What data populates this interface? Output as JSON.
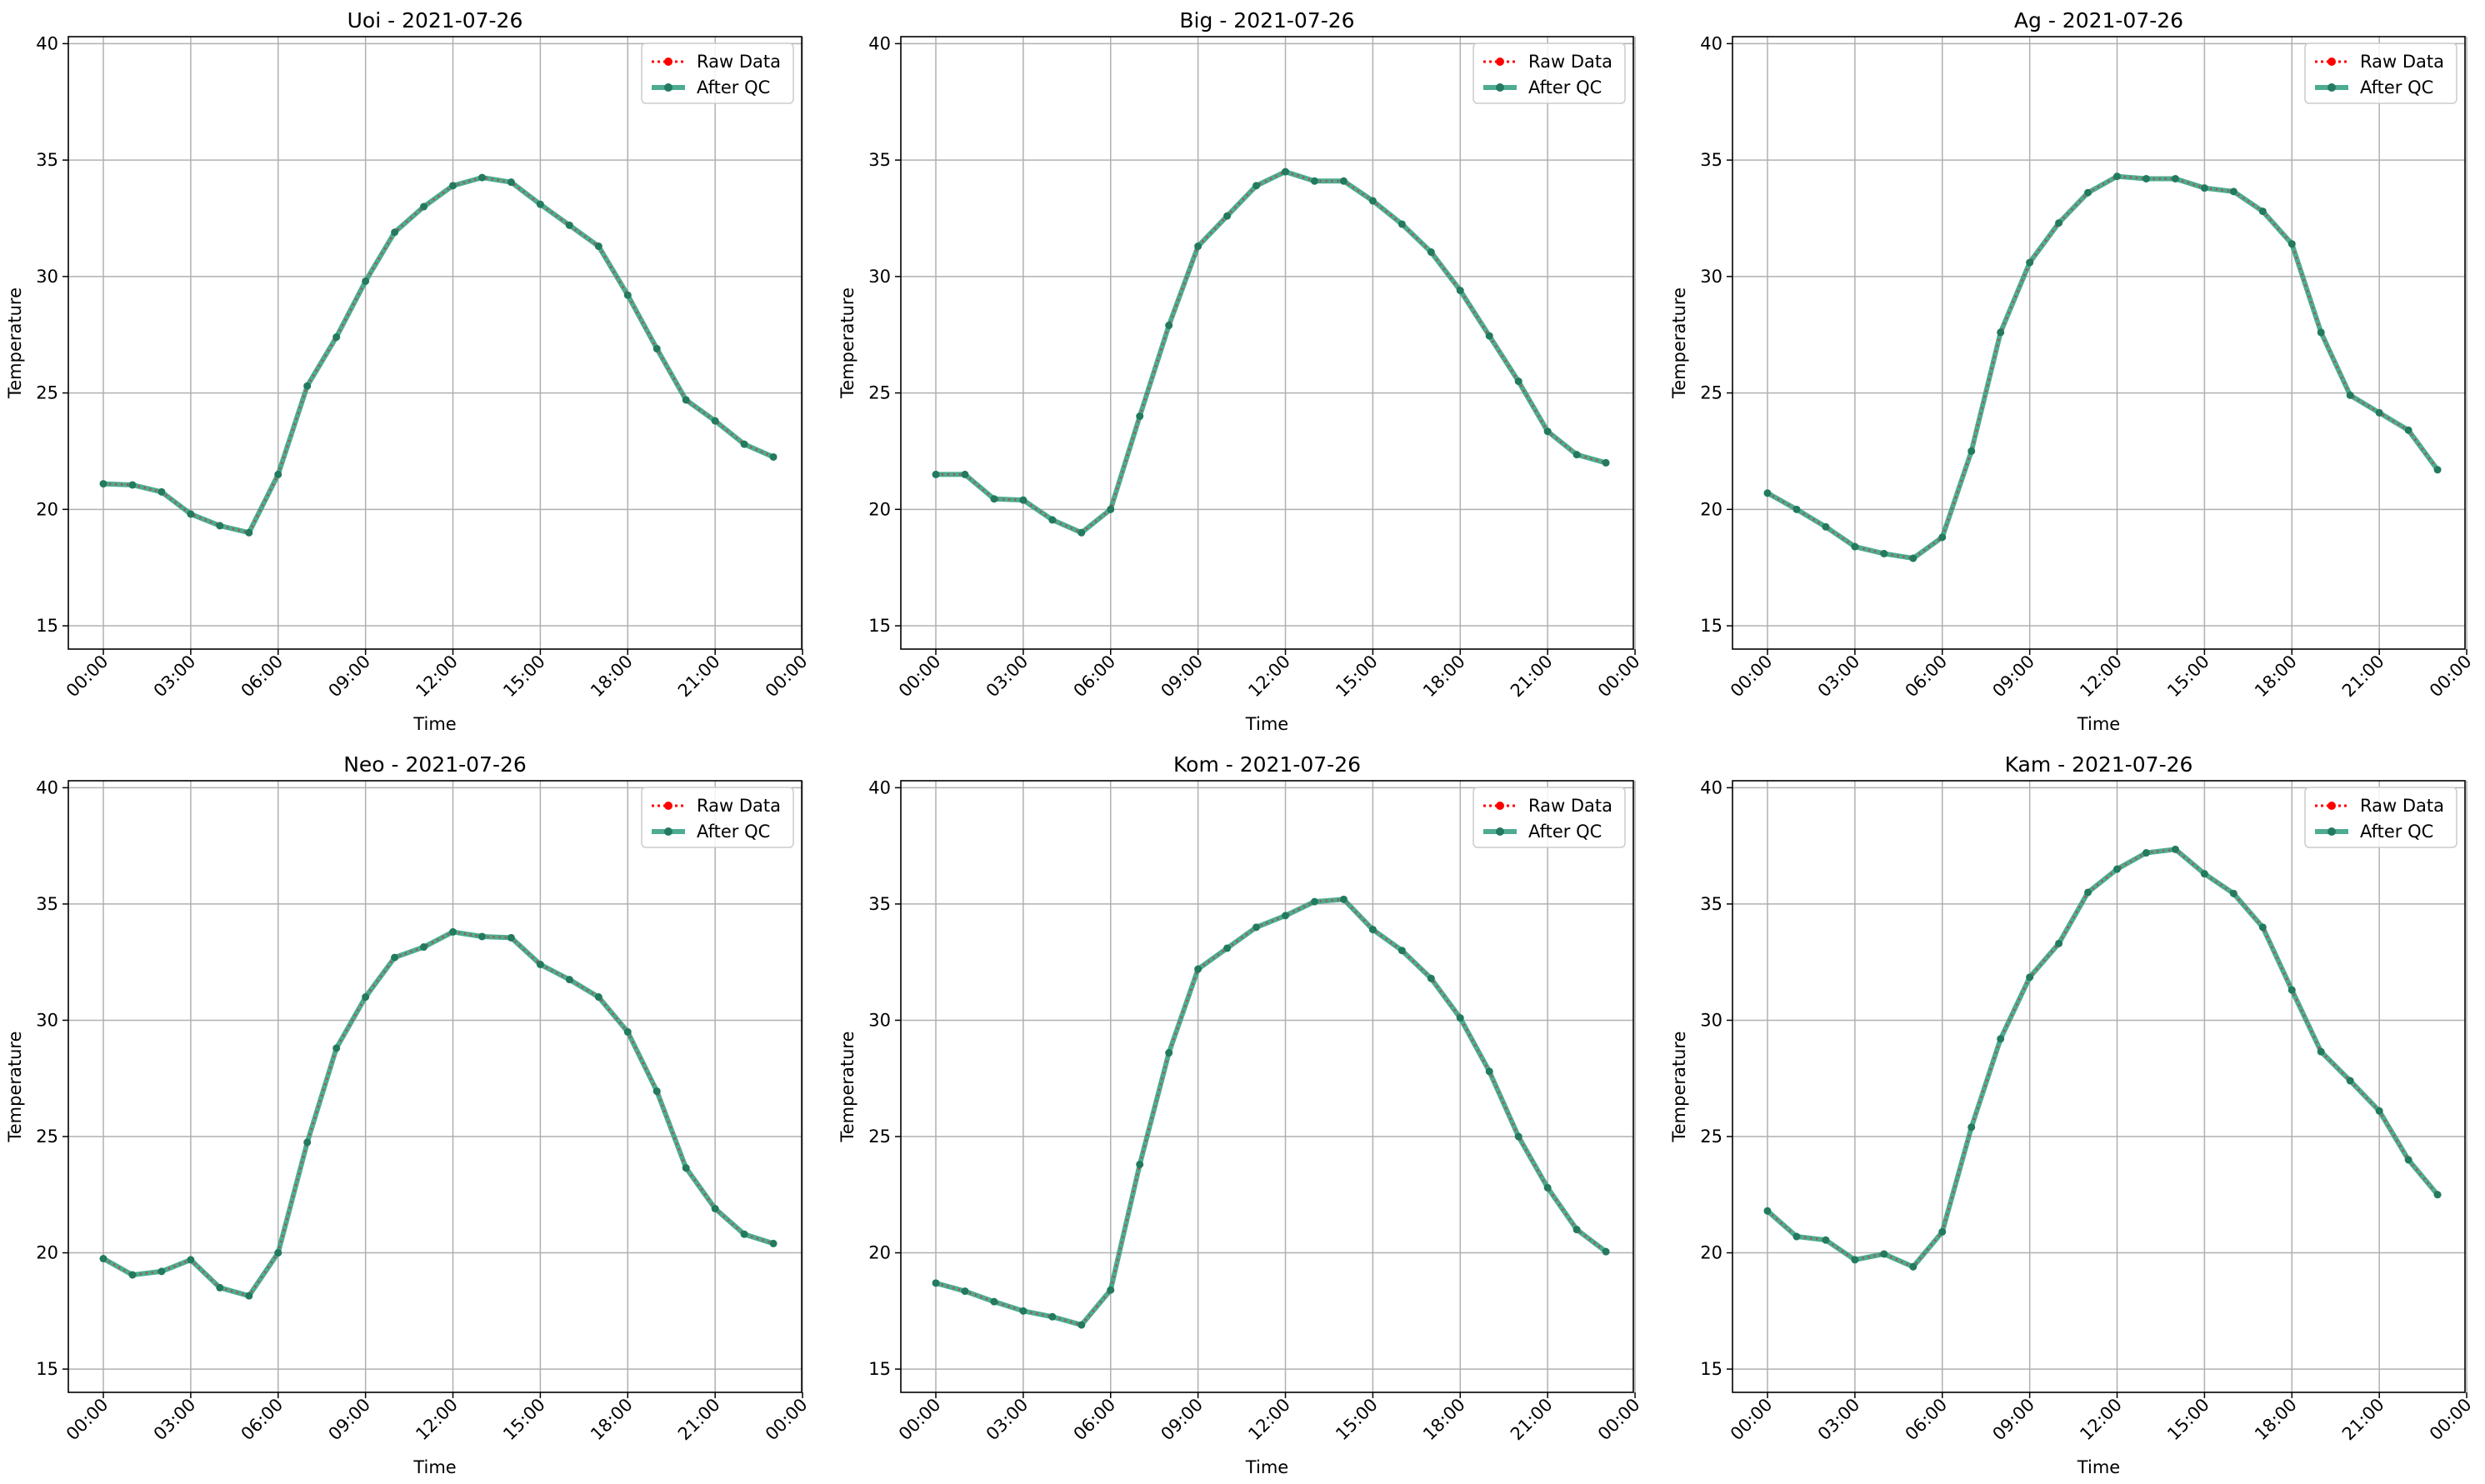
{
  "chart_data": [
    {
      "type": "line",
      "title": "Uoi - 2021-07-26",
      "xlabel": "Time",
      "ylabel": "Temperature",
      "xticks": [
        "00:00",
        "03:00",
        "06:00",
        "09:00",
        "12:00",
        "15:00",
        "18:00",
        "21:00",
        "00:00"
      ],
      "yticks": [
        "15",
        "20",
        "25",
        "30",
        "35",
        "40"
      ],
      "ylim": [
        14,
        40.3
      ],
      "grid": true,
      "legend_position": "top-right",
      "legend": [
        "Raw Data",
        "After QC"
      ],
      "x_hours": [
        0,
        1,
        2,
        3,
        4,
        5,
        6,
        7,
        8,
        9,
        10,
        11,
        12,
        13,
        14,
        15,
        16,
        17,
        18,
        19,
        20,
        21,
        22,
        23
      ],
      "series": [
        {
          "name": "Raw Data",
          "style": "dotted-markers",
          "values": [
            21.1,
            21.05,
            20.75,
            19.8,
            19.3,
            19.0,
            21.5,
            25.3,
            27.4,
            29.8,
            31.9,
            33.0,
            33.9,
            34.25,
            34.05,
            33.1,
            32.2,
            31.3,
            29.2,
            26.9,
            24.7,
            23.8,
            22.8,
            22.25
          ]
        },
        {
          "name": "After QC",
          "style": "solid-markers",
          "values": [
            21.1,
            21.05,
            20.75,
            19.8,
            19.3,
            19.0,
            21.5,
            25.3,
            27.4,
            29.8,
            31.9,
            33.0,
            33.9,
            34.25,
            34.05,
            33.1,
            32.2,
            31.3,
            29.2,
            26.9,
            24.7,
            23.8,
            22.8,
            22.25
          ]
        }
      ]
    },
    {
      "type": "line",
      "title": "Big - 2021-07-26",
      "xlabel": "Time",
      "ylabel": "Temperature",
      "xticks": [
        "00:00",
        "03:00",
        "06:00",
        "09:00",
        "12:00",
        "15:00",
        "18:00",
        "21:00",
        "00:00"
      ],
      "yticks": [
        "15",
        "20",
        "25",
        "30",
        "35",
        "40"
      ],
      "ylim": [
        14,
        40.3
      ],
      "grid": true,
      "legend_position": "top-right",
      "legend": [
        "Raw Data",
        "After QC"
      ],
      "x_hours": [
        0,
        1,
        2,
        3,
        4,
        5,
        6,
        7,
        8,
        9,
        10,
        11,
        12,
        13,
        14,
        15,
        16,
        17,
        18,
        19,
        20,
        21,
        22,
        23
      ],
      "series": [
        {
          "name": "Raw Data",
          "style": "dotted-markers",
          "values": [
            21.5,
            21.5,
            20.45,
            20.4,
            19.55,
            19.0,
            20.0,
            24.0,
            27.9,
            31.3,
            32.6,
            33.9,
            34.5,
            34.1,
            34.1,
            33.25,
            32.25,
            31.05,
            29.4,
            27.45,
            25.5,
            23.35,
            22.35,
            22.0
          ]
        },
        {
          "name": "After QC",
          "style": "solid-markers",
          "values": [
            21.5,
            21.5,
            20.45,
            20.4,
            19.55,
            19.0,
            20.0,
            24.0,
            27.9,
            31.3,
            32.6,
            33.9,
            34.5,
            34.1,
            34.1,
            33.25,
            32.25,
            31.05,
            29.4,
            27.45,
            25.5,
            23.35,
            22.35,
            22.0
          ]
        }
      ]
    },
    {
      "type": "line",
      "title": "Ag - 2021-07-26",
      "xlabel": "Time",
      "ylabel": "Temperature",
      "xticks": [
        "00:00",
        "03:00",
        "06:00",
        "09:00",
        "12:00",
        "15:00",
        "18:00",
        "21:00",
        "00:00"
      ],
      "yticks": [
        "15",
        "20",
        "25",
        "30",
        "35",
        "40"
      ],
      "ylim": [
        14,
        40.3
      ],
      "grid": true,
      "legend_position": "top-right",
      "legend": [
        "Raw Data",
        "After QC"
      ],
      "x_hours": [
        0,
        1,
        2,
        3,
        4,
        5,
        6,
        7,
        8,
        9,
        10,
        11,
        12,
        13,
        14,
        15,
        16,
        17,
        18,
        19,
        20,
        21,
        22,
        23
      ],
      "series": [
        {
          "name": "Raw Data",
          "style": "dotted-markers",
          "values": [
            20.7,
            20.0,
            19.25,
            18.4,
            18.1,
            17.9,
            18.8,
            22.5,
            27.6,
            30.6,
            32.3,
            33.6,
            34.3,
            34.2,
            34.2,
            33.8,
            33.65,
            32.8,
            31.4,
            27.6,
            24.9,
            24.15,
            23.4,
            21.7
          ]
        },
        {
          "name": "After QC",
          "style": "solid-markers",
          "values": [
            20.7,
            20.0,
            19.25,
            18.4,
            18.1,
            17.9,
            18.8,
            22.5,
            27.6,
            30.6,
            32.3,
            33.6,
            34.3,
            34.2,
            34.2,
            33.8,
            33.65,
            32.8,
            31.4,
            27.6,
            24.9,
            24.15,
            23.4,
            21.7
          ]
        }
      ]
    },
    {
      "type": "line",
      "title": "Neo - 2021-07-26",
      "xlabel": "Time",
      "ylabel": "Temperature",
      "xticks": [
        "00:00",
        "03:00",
        "06:00",
        "09:00",
        "12:00",
        "15:00",
        "18:00",
        "21:00",
        "00:00"
      ],
      "yticks": [
        "15",
        "20",
        "25",
        "30",
        "35",
        "40"
      ],
      "ylim": [
        14,
        40.3
      ],
      "grid": true,
      "legend_position": "top-right",
      "legend": [
        "Raw Data",
        "After QC"
      ],
      "x_hours": [
        0,
        1,
        2,
        3,
        4,
        5,
        6,
        7,
        8,
        9,
        10,
        11,
        12,
        13,
        14,
        15,
        16,
        17,
        18,
        19,
        20,
        21,
        22,
        23
      ],
      "series": [
        {
          "name": "Raw Data",
          "style": "dotted-markers",
          "values": [
            19.75,
            19.05,
            19.2,
            19.7,
            18.5,
            18.15,
            20.0,
            24.75,
            28.8,
            31.0,
            32.7,
            33.15,
            33.8,
            33.6,
            33.55,
            32.4,
            31.75,
            31.0,
            29.5,
            26.95,
            23.65,
            21.9,
            20.8,
            20.4
          ]
        },
        {
          "name": "After QC",
          "style": "solid-markers",
          "values": [
            19.75,
            19.05,
            19.2,
            19.7,
            18.5,
            18.15,
            20.0,
            24.75,
            28.8,
            31.0,
            32.7,
            33.15,
            33.8,
            33.6,
            33.55,
            32.4,
            31.75,
            31.0,
            29.5,
            26.95,
            23.65,
            21.9,
            20.8,
            20.4
          ]
        }
      ]
    },
    {
      "type": "line",
      "title": "Kom - 2021-07-26",
      "xlabel": "Time",
      "ylabel": "Temperature",
      "xticks": [
        "00:00",
        "03:00",
        "06:00",
        "09:00",
        "12:00",
        "15:00",
        "18:00",
        "21:00",
        "00:00"
      ],
      "yticks": [
        "15",
        "20",
        "25",
        "30",
        "35",
        "40"
      ],
      "ylim": [
        14,
        40.3
      ],
      "grid": true,
      "legend_position": "top-right",
      "legend": [
        "Raw Data",
        "After QC"
      ],
      "x_hours": [
        0,
        1,
        2,
        3,
        4,
        5,
        6,
        7,
        8,
        9,
        10,
        11,
        12,
        13,
        14,
        15,
        16,
        17,
        18,
        19,
        20,
        21,
        22,
        23
      ],
      "series": [
        {
          "name": "Raw Data",
          "style": "dotted-markers",
          "values": [
            18.7,
            18.35,
            17.9,
            17.5,
            17.25,
            16.9,
            18.4,
            23.8,
            28.6,
            32.2,
            33.1,
            34.0,
            34.5,
            35.1,
            35.2,
            33.9,
            33.0,
            31.8,
            30.1,
            27.8,
            25.0,
            22.8,
            21.0,
            20.05
          ]
        },
        {
          "name": "After QC",
          "style": "solid-markers",
          "values": [
            18.7,
            18.35,
            17.9,
            17.5,
            17.25,
            16.9,
            18.4,
            23.8,
            28.6,
            32.2,
            33.1,
            34.0,
            34.5,
            35.1,
            35.2,
            33.9,
            33.0,
            31.8,
            30.1,
            27.8,
            25.0,
            22.8,
            21.0,
            20.05
          ]
        }
      ]
    },
    {
      "type": "line",
      "title": "Kam - 2021-07-26",
      "xlabel": "Time",
      "ylabel": "Temperature",
      "xticks": [
        "00:00",
        "03:00",
        "06:00",
        "09:00",
        "12:00",
        "15:00",
        "18:00",
        "21:00",
        "00:00"
      ],
      "yticks": [
        "15",
        "20",
        "25",
        "30",
        "35",
        "40"
      ],
      "ylim": [
        14,
        40.3
      ],
      "grid": true,
      "legend_position": "top-right",
      "legend": [
        "Raw Data",
        "After QC"
      ],
      "x_hours": [
        0,
        1,
        2,
        3,
        4,
        5,
        6,
        7,
        8,
        9,
        10,
        11,
        12,
        13,
        14,
        15,
        16,
        17,
        18,
        19,
        20,
        21,
        22,
        23
      ],
      "series": [
        {
          "name": "Raw Data",
          "style": "dotted-markers",
          "values": [
            21.8,
            20.7,
            20.55,
            19.7,
            19.95,
            19.4,
            20.9,
            25.4,
            29.2,
            31.85,
            33.3,
            35.5,
            36.5,
            37.2,
            37.35,
            36.3,
            35.45,
            34.0,
            31.3,
            28.65,
            27.4,
            26.1,
            24.0,
            22.5
          ]
        },
        {
          "name": "After QC",
          "style": "solid-markers",
          "values": [
            21.8,
            20.7,
            20.55,
            19.7,
            19.95,
            19.4,
            20.9,
            25.4,
            29.2,
            31.85,
            33.3,
            35.5,
            36.5,
            37.2,
            37.35,
            36.3,
            35.45,
            34.0,
            31.3,
            28.65,
            27.4,
            26.1,
            24.0,
            22.5
          ]
        }
      ]
    }
  ],
  "colors": {
    "raw": "#ff0000",
    "qc_line": "#2e9e7e",
    "qc_marker": "#237a5f",
    "grid": "#b0b0b0",
    "axis": "#000000"
  }
}
